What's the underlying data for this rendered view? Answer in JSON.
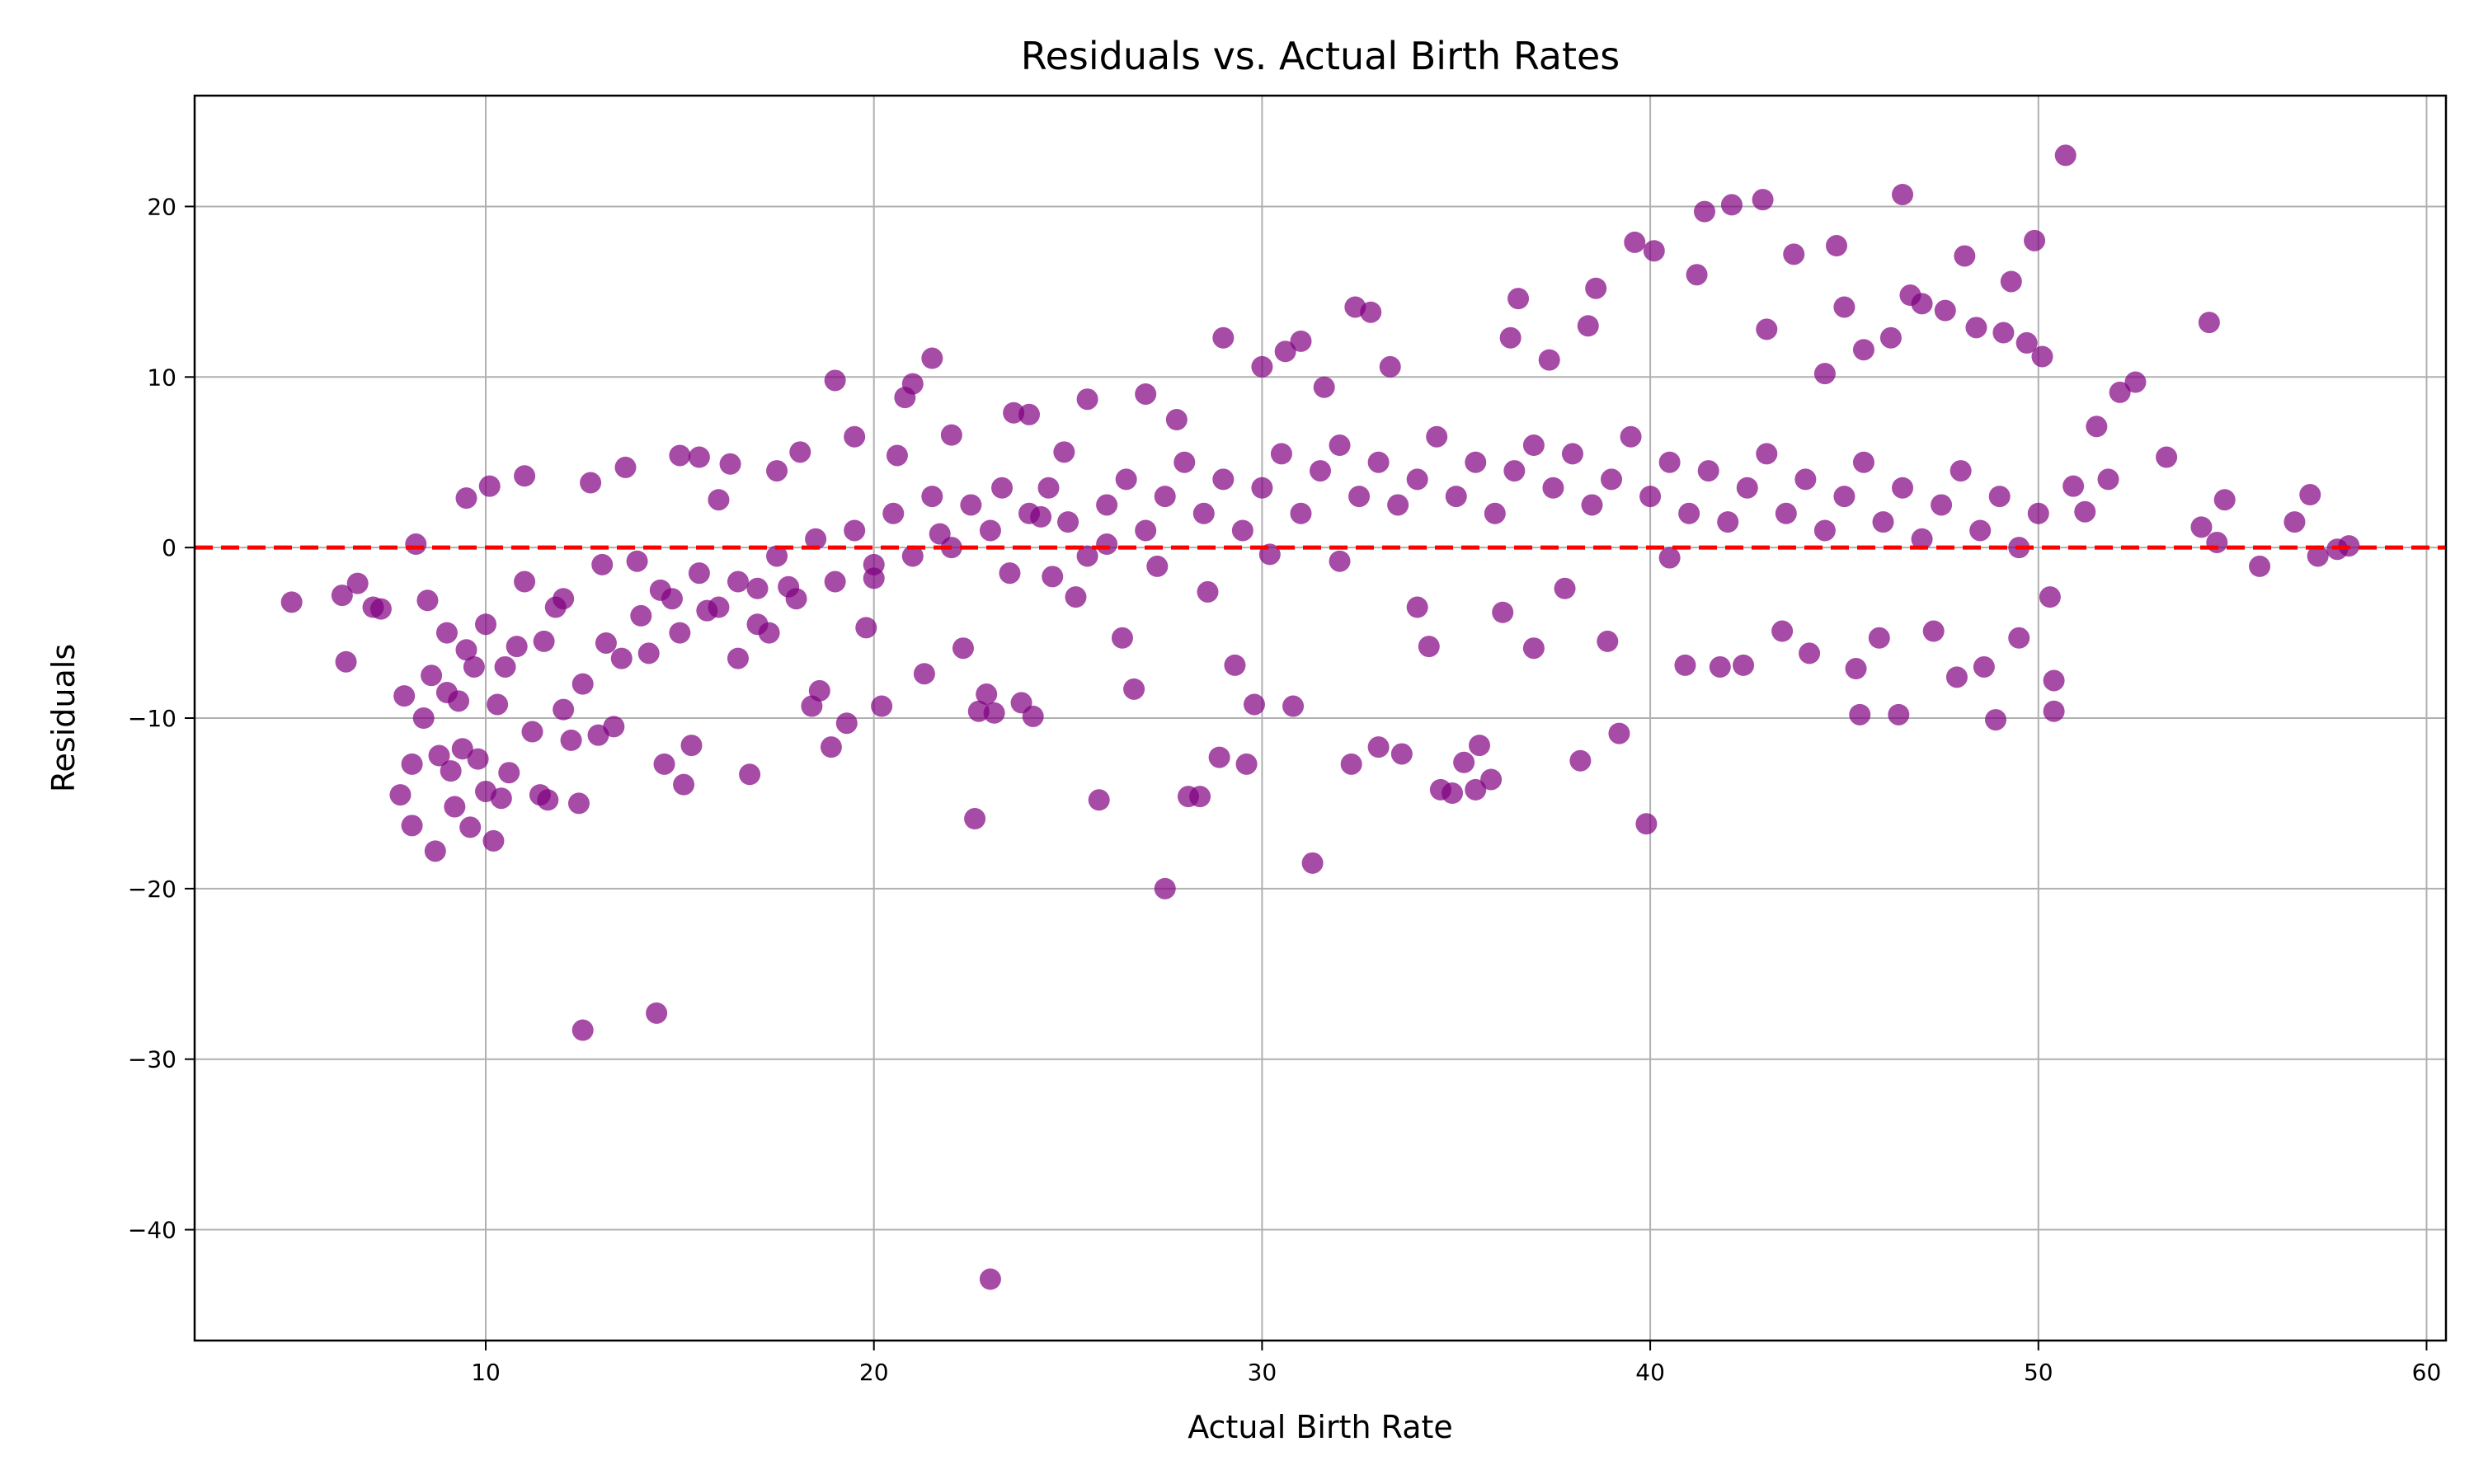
{
  "chart_data": {
    "type": "scatter",
    "title": "Residuals vs. Actual Birth Rates",
    "xlabel": "Actual Birth Rate",
    "ylabel": "Residuals",
    "xlim": [
      2.5,
      60.5
    ],
    "ylim": [
      -46.5,
      26.5
    ],
    "x_ticks": [
      10,
      20,
      30,
      40,
      50,
      60
    ],
    "y_ticks": [
      -40,
      -30,
      -20,
      -10,
      0,
      10,
      20
    ],
    "x_tick_labels": [
      "10",
      "20",
      "30",
      "40",
      "50",
      "60"
    ],
    "y_tick_labels": [
      "−40",
      "−30",
      "−20",
      "−10",
      "0",
      "10",
      "20"
    ],
    "grid": true,
    "reference_line": {
      "y": 0,
      "style": "dashed",
      "color": "#ff0000"
    },
    "marker_color": "#800080",
    "marker_alpha": 0.7,
    "points": [
      [
        5.0,
        -3.2
      ],
      [
        6.3,
        -2.8
      ],
      [
        6.4,
        -6.7
      ],
      [
        6.7,
        -2.1
      ],
      [
        7.1,
        -3.5
      ],
      [
        7.3,
        -3.6
      ],
      [
        7.8,
        -14.5
      ],
      [
        7.9,
        -8.7
      ],
      [
        8.1,
        -16.3
      ],
      [
        8.1,
        -12.7
      ],
      [
        8.2,
        0.2
      ],
      [
        8.4,
        -10.0
      ],
      [
        8.5,
        -3.1
      ],
      [
        8.6,
        -7.5
      ],
      [
        8.7,
        -17.8
      ],
      [
        8.8,
        -12.2
      ],
      [
        9.0,
        -5.0
      ],
      [
        9.1,
        -13.1
      ],
      [
        9.2,
        -15.2
      ],
      [
        9.3,
        -9.0
      ],
      [
        9.4,
        -11.8
      ],
      [
        9.5,
        2.9
      ],
      [
        9.6,
        -16.4
      ],
      [
        9.7,
        -7.0
      ],
      [
        9.8,
        -12.4
      ],
      [
        10.0,
        -14.3
      ],
      [
        10.1,
        3.6
      ],
      [
        10.2,
        -17.2
      ],
      [
        10.3,
        -9.2
      ],
      [
        10.4,
        -14.7
      ],
      [
        10.6,
        -13.2
      ],
      [
        10.8,
        -5.8
      ],
      [
        11.0,
        4.2
      ],
      [
        11.2,
        -10.8
      ],
      [
        11.4,
        -14.5
      ],
      [
        11.6,
        -14.8
      ],
      [
        11.8,
        -3.5
      ],
      [
        12.0,
        -9.5
      ],
      [
        12.2,
        -11.3
      ],
      [
        12.4,
        -15.0
      ],
      [
        12.5,
        -28.3
      ],
      [
        12.7,
        3.8
      ],
      [
        12.9,
        -11.0
      ],
      [
        13.1,
        -5.6
      ],
      [
        13.3,
        -10.5
      ],
      [
        13.6,
        4.7
      ],
      [
        13.9,
        -0.8
      ],
      [
        14.2,
        -6.2
      ],
      [
        14.4,
        -27.3
      ],
      [
        14.6,
        -12.7
      ],
      [
        14.8,
        -3.0
      ],
      [
        15.0,
        5.4
      ],
      [
        15.1,
        -13.9
      ],
      [
        15.3,
        -11.6
      ],
      [
        15.5,
        5.3
      ],
      [
        15.7,
        -3.7
      ],
      [
        16.0,
        2.8
      ],
      [
        16.3,
        4.9
      ],
      [
        16.5,
        -6.5
      ],
      [
        16.8,
        -13.3
      ],
      [
        17.0,
        -2.4
      ],
      [
        17.3,
        -5.0
      ],
      [
        17.5,
        4.5
      ],
      [
        17.8,
        -2.3
      ],
      [
        18.1,
        5.6
      ],
      [
        18.4,
        -9.3
      ],
      [
        18.6,
        -8.4
      ],
      [
        18.9,
        -11.7
      ],
      [
        19.0,
        9.8
      ],
      [
        19.3,
        -10.3
      ],
      [
        19.5,
        6.5
      ],
      [
        19.8,
        -4.7
      ],
      [
        20.0,
        -1.8
      ],
      [
        20.2,
        -9.3
      ],
      [
        20.6,
        5.4
      ],
      [
        20.8,
        8.8
      ],
      [
        21.0,
        9.6
      ],
      [
        21.3,
        -7.4
      ],
      [
        21.5,
        11.1
      ],
      [
        21.7,
        0.8
      ],
      [
        22.0,
        6.6
      ],
      [
        22.3,
        -5.9
      ],
      [
        22.6,
        -15.9
      ],
      [
        22.7,
        -9.6
      ],
      [
        22.9,
        -8.6
      ],
      [
        23.0,
        -42.9
      ],
      [
        23.1,
        -9.7
      ],
      [
        23.3,
        3.5
      ],
      [
        23.6,
        7.9
      ],
      [
        23.8,
        -9.1
      ],
      [
        24.0,
        7.8
      ],
      [
        24.1,
        -9.9
      ],
      [
        24.3,
        1.8
      ],
      [
        24.6,
        -1.7
      ],
      [
        24.9,
        5.6
      ],
      [
        25.2,
        -2.9
      ],
      [
        25.5,
        8.7
      ],
      [
        25.8,
        -14.8
      ],
      [
        26.0,
        0.2
      ],
      [
        26.4,
        -5.3
      ],
      [
        26.7,
        -8.3
      ],
      [
        27.0,
        9.0
      ],
      [
        27.3,
        -1.1
      ],
      [
        27.5,
        -20.0
      ],
      [
        27.8,
        7.5
      ],
      [
        28.1,
        -14.6
      ],
      [
        28.4,
        -14.6
      ],
      [
        28.6,
        -2.6
      ],
      [
        28.9,
        -12.3
      ],
      [
        29.0,
        12.3
      ],
      [
        29.3,
        -6.9
      ],
      [
        29.6,
        -12.7
      ],
      [
        29.8,
        -9.2
      ],
      [
        30.0,
        10.6
      ],
      [
        30.2,
        -0.4
      ],
      [
        30.6,
        11.5
      ],
      [
        30.8,
        -9.3
      ],
      [
        31.0,
        12.1
      ],
      [
        31.3,
        -18.5
      ],
      [
        31.6,
        9.4
      ],
      [
        32.0,
        -0.8
      ],
      [
        32.3,
        -12.7
      ],
      [
        32.4,
        14.1
      ],
      [
        32.8,
        13.8
      ],
      [
        33.0,
        -11.7
      ],
      [
        33.3,
        10.6
      ],
      [
        33.6,
        -12.1
      ],
      [
        34.0,
        -3.5
      ],
      [
        34.3,
        -5.8
      ],
      [
        34.6,
        -14.2
      ],
      [
        34.9,
        -14.4
      ],
      [
        35.2,
        -12.6
      ],
      [
        35.5,
        -14.2
      ],
      [
        35.6,
        -11.6
      ],
      [
        35.9,
        -13.6
      ],
      [
        36.2,
        -3.8
      ],
      [
        36.4,
        12.3
      ],
      [
        36.6,
        14.6
      ],
      [
        37.0,
        -5.9
      ],
      [
        37.4,
        11.0
      ],
      [
        37.8,
        -2.4
      ],
      [
        38.2,
        -12.5
      ],
      [
        38.4,
        13.0
      ],
      [
        38.6,
        15.2
      ],
      [
        38.9,
        -5.5
      ],
      [
        39.2,
        -10.9
      ],
      [
        39.6,
        17.9
      ],
      [
        39.9,
        -16.2
      ],
      [
        40.1,
        17.4
      ],
      [
        40.5,
        -0.6
      ],
      [
        40.9,
        -6.9
      ],
      [
        41.2,
        16.0
      ],
      [
        41.4,
        19.7
      ],
      [
        41.8,
        -7.0
      ],
      [
        42.1,
        20.1
      ],
      [
        42.4,
        -6.9
      ],
      [
        42.9,
        20.4
      ],
      [
        43.0,
        12.8
      ],
      [
        43.4,
        -4.9
      ],
      [
        43.7,
        17.2
      ],
      [
        44.1,
        -6.2
      ],
      [
        44.5,
        10.2
      ],
      [
        44.8,
        17.7
      ],
      [
        45.0,
        14.1
      ],
      [
        45.3,
        -7.1
      ],
      [
        45.4,
        -9.8
      ],
      [
        45.5,
        11.6
      ],
      [
        45.9,
        -5.3
      ],
      [
        46.2,
        12.3
      ],
      [
        46.5,
        20.7
      ],
      [
        46.4,
        -9.8
      ],
      [
        46.7,
        14.8
      ],
      [
        47.0,
        14.3
      ],
      [
        47.3,
        -4.9
      ],
      [
        47.6,
        13.9
      ],
      [
        47.9,
        -7.6
      ],
      [
        48.1,
        17.1
      ],
      [
        48.4,
        12.9
      ],
      [
        48.6,
        -7.0
      ],
      [
        48.9,
        -10.1
      ],
      [
        49.1,
        12.6
      ],
      [
        49.3,
        15.6
      ],
      [
        49.5,
        -5.3
      ],
      [
        49.7,
        12.0
      ],
      [
        49.9,
        18.0
      ],
      [
        50.1,
        11.2
      ],
      [
        50.3,
        -2.9
      ],
      [
        50.4,
        -9.6
      ],
      [
        50.4,
        -7.8
      ],
      [
        50.7,
        23.0
      ],
      [
        50.9,
        3.6
      ],
      [
        51.2,
        2.1
      ],
      [
        51.5,
        7.1
      ],
      [
        51.8,
        4.0
      ],
      [
        52.1,
        9.1
      ],
      [
        52.5,
        9.7
      ],
      [
        53.3,
        5.3
      ],
      [
        54.2,
        1.2
      ],
      [
        54.4,
        13.2
      ],
      [
        54.6,
        0.3
      ],
      [
        54.8,
        2.8
      ],
      [
        55.7,
        -1.1
      ],
      [
        56.6,
        1.5
      ],
      [
        57.0,
        3.1
      ],
      [
        57.2,
        -0.5
      ],
      [
        57.7,
        -0.1
      ],
      [
        58.0,
        0.1
      ],
      [
        9.0,
        -8.5
      ],
      [
        9.5,
        -6.0
      ],
      [
        10.0,
        -4.5
      ],
      [
        10.5,
        -7.0
      ],
      [
        11.0,
        -2.0
      ],
      [
        11.5,
        -5.5
      ],
      [
        12.0,
        -3.0
      ],
      [
        12.5,
        -8.0
      ],
      [
        13.0,
        -1.0
      ],
      [
        13.5,
        -6.5
      ],
      [
        14.0,
        -4.0
      ],
      [
        14.5,
        -2.5
      ],
      [
        15.0,
        -5.0
      ],
      [
        15.5,
        -1.5
      ],
      [
        16.0,
        -3.5
      ],
      [
        16.5,
        -2.0
      ],
      [
        17.0,
        -4.5
      ],
      [
        17.5,
        -0.5
      ],
      [
        18.0,
        -3.0
      ],
      [
        18.5,
        0.5
      ],
      [
        19.0,
        -2.0
      ],
      [
        19.5,
        1.0
      ],
      [
        20.0,
        -1.0
      ],
      [
        20.5,
        2.0
      ],
      [
        21.0,
        -0.5
      ],
      [
        21.5,
        3.0
      ],
      [
        22.0,
        0.0
      ],
      [
        22.5,
        2.5
      ],
      [
        23.0,
        1.0
      ],
      [
        23.5,
        -1.5
      ],
      [
        24.0,
        2.0
      ],
      [
        24.5,
        3.5
      ],
      [
        25.0,
        1.5
      ],
      [
        25.5,
        -0.5
      ],
      [
        26.0,
        2.5
      ],
      [
        26.5,
        4.0
      ],
      [
        27.0,
        1.0
      ],
      [
        27.5,
        3.0
      ],
      [
        28.0,
        5.0
      ],
      [
        28.5,
        2.0
      ],
      [
        29.0,
        4.0
      ],
      [
        29.5,
        1.0
      ],
      [
        30.0,
        3.5
      ],
      [
        30.5,
        5.5
      ],
      [
        31.0,
        2.0
      ],
      [
        31.5,
        4.5
      ],
      [
        32.0,
        6.0
      ],
      [
        32.5,
        3.0
      ],
      [
        33.0,
        5.0
      ],
      [
        33.5,
        2.5
      ],
      [
        34.0,
        4.0
      ],
      [
        34.5,
        6.5
      ],
      [
        35.0,
        3.0
      ],
      [
        35.5,
        5.0
      ],
      [
        36.0,
        2.0
      ],
      [
        36.5,
        4.5
      ],
      [
        37.0,
        6.0
      ],
      [
        37.5,
        3.5
      ],
      [
        38.0,
        5.5
      ],
      [
        38.5,
        2.5
      ],
      [
        39.0,
        4.0
      ],
      [
        39.5,
        6.5
      ],
      [
        40.0,
        3.0
      ],
      [
        40.5,
        5.0
      ],
      [
        41.0,
        2.0
      ],
      [
        41.5,
        4.5
      ],
      [
        42.0,
        1.5
      ],
      [
        42.5,
        3.5
      ],
      [
        43.0,
        5.5
      ],
      [
        43.5,
        2.0
      ],
      [
        44.0,
        4.0
      ],
      [
        44.5,
        1.0
      ],
      [
        45.0,
        3.0
      ],
      [
        45.5,
        5.0
      ],
      [
        46.0,
        1.5
      ],
      [
        46.5,
        3.5
      ],
      [
        47.0,
        0.5
      ],
      [
        47.5,
        2.5
      ],
      [
        48.0,
        4.5
      ],
      [
        48.5,
        1.0
      ],
      [
        49.0,
        3.0
      ],
      [
        49.5,
        0.0
      ],
      [
        50.0,
        2.0
      ]
    ]
  }
}
